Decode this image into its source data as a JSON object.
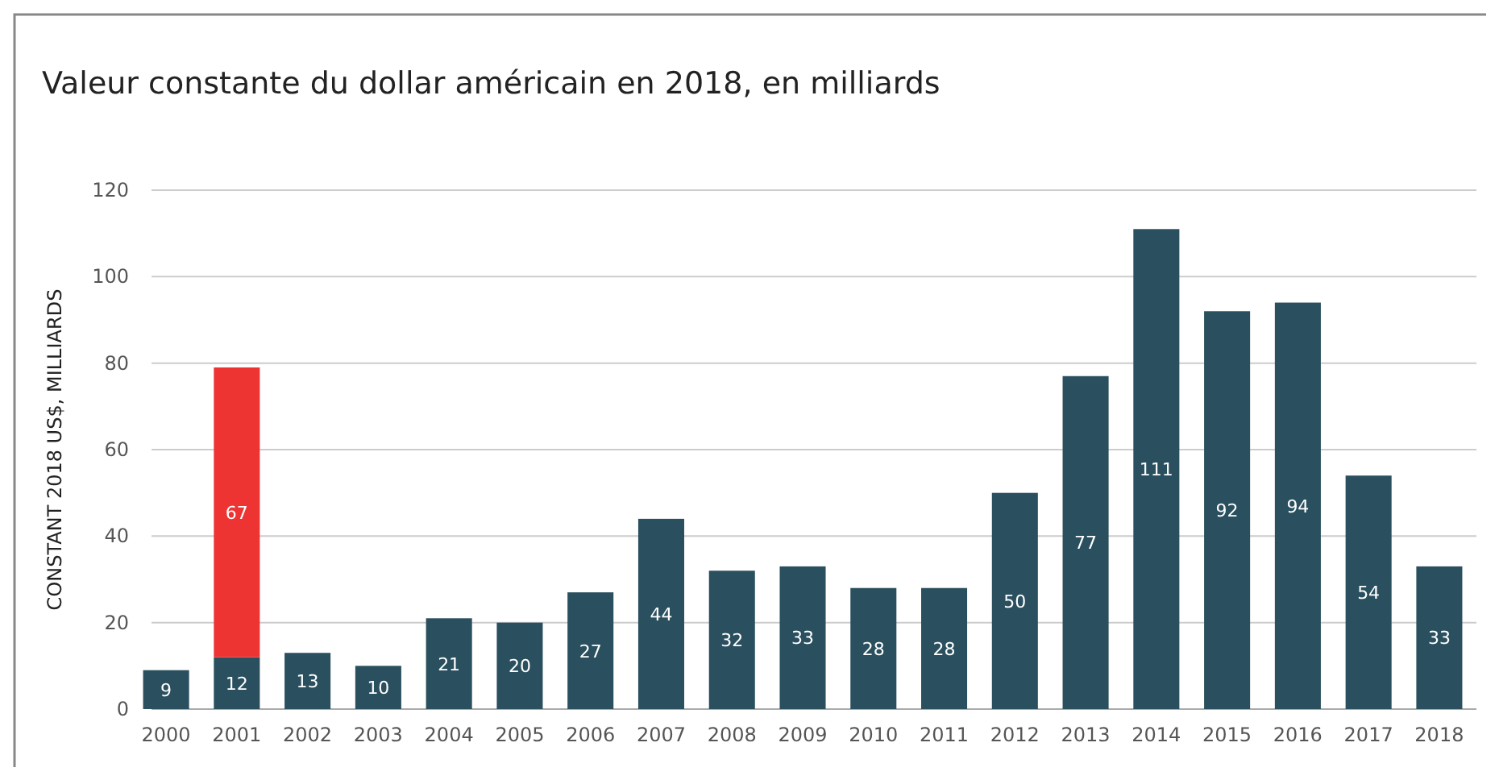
{
  "chart_data": {
    "type": "bar",
    "title": "Valeur constante du dollar américain en 2018, en milliards",
    "ylabel": "CONSTANT 2018 US$, MILLIARDS",
    "categories": [
      "2000",
      "2001",
      "2002",
      "2003",
      "2004",
      "2005",
      "2006",
      "2007",
      "2008",
      "2009",
      "2010",
      "2011",
      "2012",
      "2013",
      "2014",
      "2015",
      "2016",
      "2017",
      "2018"
    ],
    "stacked": true,
    "series": [
      {
        "color": "#2a4f5e",
        "values": [
          9,
          12,
          13,
          10,
          21,
          20,
          27,
          44,
          32,
          33,
          28,
          28,
          50,
          77,
          111,
          92,
          94,
          54,
          33
        ]
      },
      {
        "color": "#ee3333",
        "values": [
          null,
          67,
          null,
          null,
          null,
          null,
          null,
          null,
          null,
          null,
          null,
          null,
          null,
          null,
          null,
          null,
          null,
          null,
          null
        ]
      }
    ],
    "ylim": [
      0,
      120
    ],
    "yticks": [
      0,
      20,
      40,
      60,
      80,
      100,
      120
    ],
    "grid": "y",
    "data_labels": true
  }
}
